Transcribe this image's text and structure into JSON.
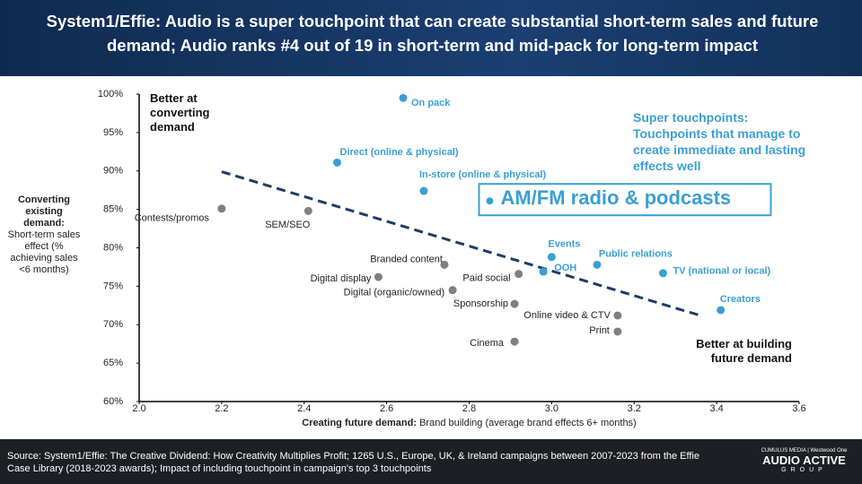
{
  "header": {
    "title": "System1/Effie: Audio is a super touchpoint that can create substantial short-term sales and future demand; Audio ranks #4 out of 19 in short-term and mid-pack for long-term impact"
  },
  "chart_data": {
    "type": "scatter",
    "x_label_bold": "Creating future demand:",
    "x_label": "Brand building (average brand effects 6+ months)",
    "y_label_bold": "Converting existing demand:",
    "y_label": "Short-term sales effect (% achieving sales <6 months)",
    "xlim": [
      2.0,
      3.6
    ],
    "ylim": [
      60,
      100
    ],
    "xticks": [
      {
        "value": 2,
        "label": "2.0"
      },
      2.2,
      2.4,
      2.6,
      2.8,
      {
        "value": 3,
        "label": "3.0"
      },
      3.2,
      3.4,
      3.6
    ],
    "yticks": [
      {
        "value": 60,
        "label": "60%"
      },
      {
        "value": 65,
        "label": "65%"
      },
      {
        "value": 70,
        "label": "70%"
      },
      {
        "value": 75,
        "label": "75%"
      },
      {
        "value": 80,
        "label": "80%"
      },
      {
        "value": 85,
        "label": "85%"
      },
      {
        "value": 90,
        "label": "90%"
      },
      {
        "value": 95,
        "label": "95%"
      },
      {
        "value": 100,
        "label": "100%"
      }
    ],
    "points": [
      {
        "label": "On pack",
        "x": 2.64,
        "y": 99.5,
        "color": "#3a9fd4"
      },
      {
        "label": "Direct (online & physical)",
        "x": 2.48,
        "y": 91.1,
        "color": "#3a9fd4"
      },
      {
        "label": "In-store (online & physical)",
        "x": 2.69,
        "y": 87.4,
        "color": "#3a9fd4"
      },
      {
        "label": "Contests/promos",
        "x": 2.2,
        "y": 85.1,
        "color": "#808080"
      },
      {
        "label": "SEM/SEO",
        "x": 2.41,
        "y": 84.8,
        "color": "#808080"
      },
      {
        "label": "Branded content",
        "x": 2.74,
        "y": 77.8,
        "color": "#808080"
      },
      {
        "label": "Digital display",
        "x": 2.58,
        "y": 76.2,
        "color": "#808080"
      },
      {
        "label": "Digital (organic/owned)",
        "x": 2.76,
        "y": 74.5,
        "color": "#808080"
      },
      {
        "label": "Paid social",
        "x": 2.92,
        "y": 76.6,
        "color": "#808080"
      },
      {
        "label": "Events",
        "x": 3.0,
        "y": 78.8,
        "color": "#3a9fd4"
      },
      {
        "label": "OOH",
        "x": 2.98,
        "y": 76.9,
        "color": "#3a9fd4"
      },
      {
        "label": "Public relations",
        "x": 3.11,
        "y": 77.8,
        "color": "#3a9fd4"
      },
      {
        "label": "TV (national or local)",
        "x": 3.27,
        "y": 76.7,
        "color": "#3a9fd4"
      },
      {
        "label": "Creators",
        "x": 3.41,
        "y": 71.9,
        "color": "#3a9fd4"
      },
      {
        "label": "Sponsorship",
        "x": 2.91,
        "y": 72.7,
        "color": "#808080"
      },
      {
        "label": "Online video & CTV",
        "x": 3.16,
        "y": 71.2,
        "color": "#808080"
      },
      {
        "label": "Print",
        "x": 3.16,
        "y": 69.1,
        "color": "#808080"
      },
      {
        "label": "Cinema",
        "x": 2.91,
        "y": 67.8,
        "color": "#808080"
      },
      {
        "label": "AM/FM radio & podcasts",
        "x": 2.85,
        "y": 86.1,
        "color": "#3a9fd4"
      }
    ],
    "trendline": {
      "x": [
        2.2,
        3.36
      ],
      "y": [
        89.9,
        71.2
      ],
      "color": "#1f3c66"
    },
    "annotations": {
      "top_left": "Better at converting demand",
      "bottom_right": "Better at building future demand",
      "super": "Super touchpoints: Touchpoints that manage to create immediate and lasting effects well"
    }
  },
  "footer": {
    "source": "Source: System1/Effie: The Creative Dividend: How Creativity Multiplies Profit; 1265 U.S., Europe, UK, & Ireland campaigns between 2007-2023 from the Effie Case Library (2018-2023 awards); Impact of including touchpoint in campaign's top 3 touchpoints",
    "logo_top_left": "CUMULUS MEDIA",
    "logo_top_right": "Westwood One",
    "logo_main": "AUDIO ACTIVE",
    "logo_sub": "GROUP"
  }
}
